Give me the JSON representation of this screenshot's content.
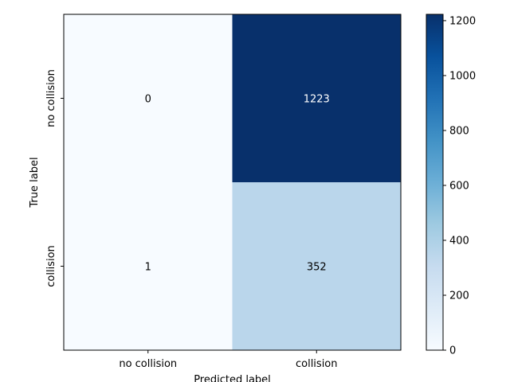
{
  "chart_data": {
    "type": "heatmap",
    "title": "",
    "xlabel": "Predicted label",
    "ylabel": "True label",
    "x_categories": [
      "no collision",
      "collision"
    ],
    "y_categories": [
      "no collision",
      "collision"
    ],
    "values": [
      [
        0,
        1223
      ],
      [
        1,
        352
      ]
    ],
    "colormap": "Blues",
    "colorbar": {
      "vmin": 0,
      "vmax": 1223,
      "ticks": [
        0,
        200,
        400,
        600,
        800,
        1000,
        1200
      ]
    },
    "colors": {
      "low": "#f7fbff",
      "high": "#08306b",
      "text_light": "#ffffff",
      "text_dark": "#000000"
    }
  }
}
